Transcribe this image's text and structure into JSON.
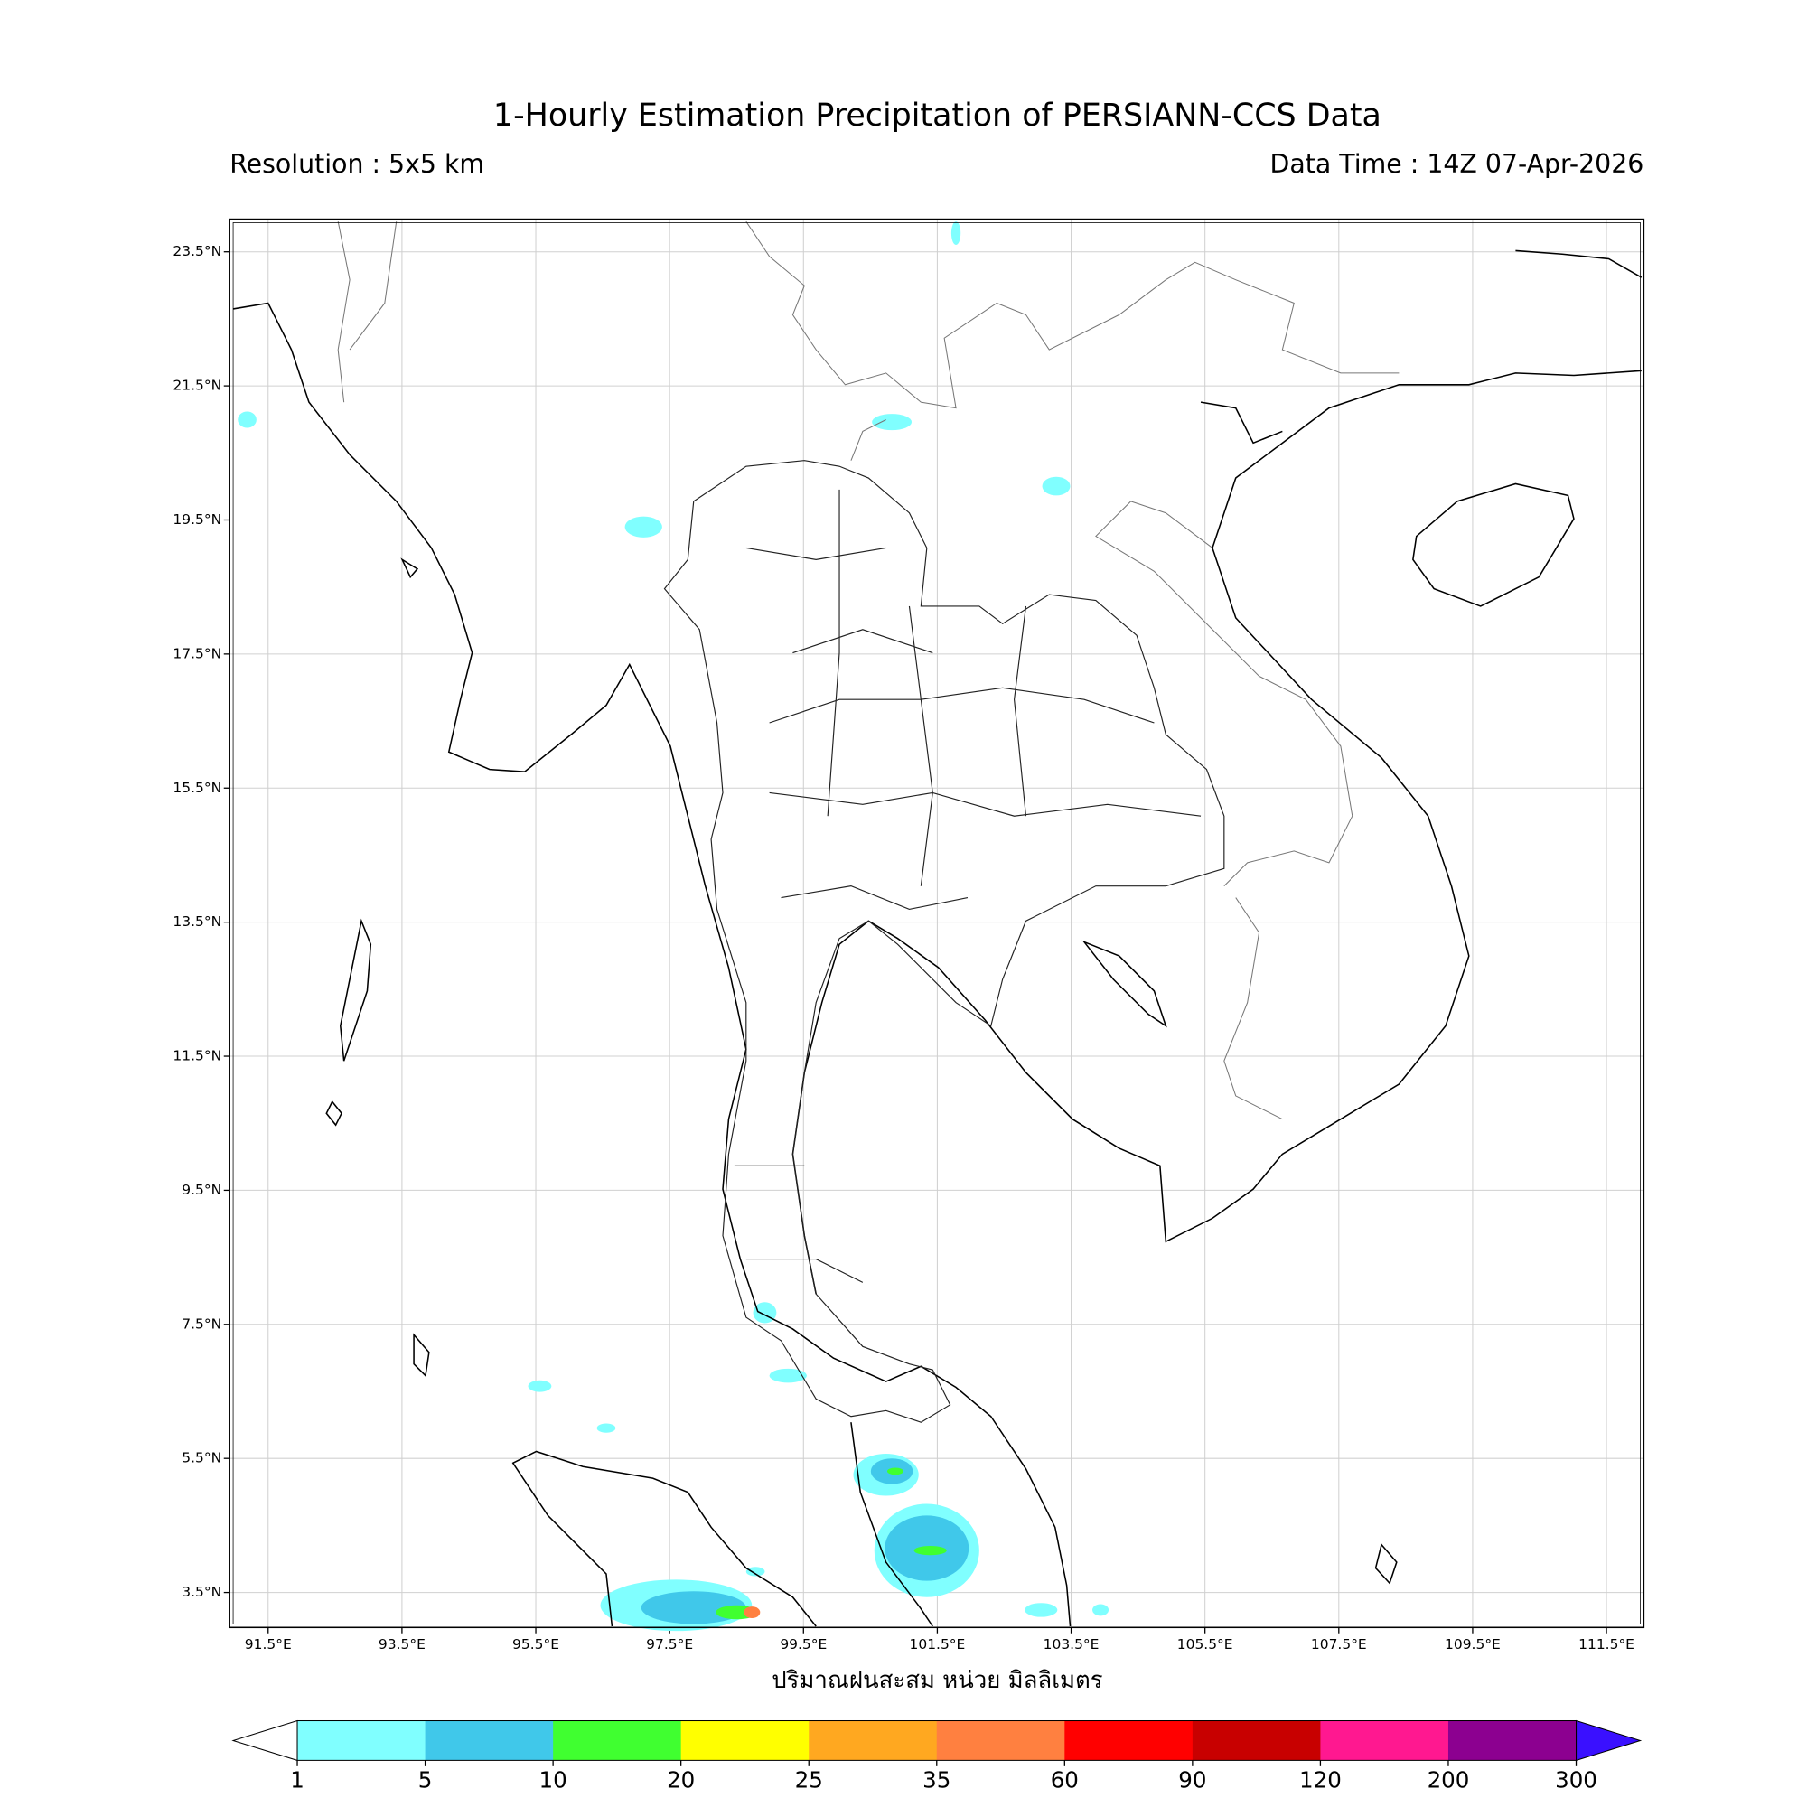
{
  "header": {
    "title": "1-Hourly Estimation Precipitation of PERSIANN-CCS Data",
    "resolution": "Resolution : 5x5 km",
    "data_time": "Data Time : 14Z 07-Apr-2026"
  },
  "map": {
    "lon_labels": [
      "91.5°E",
      "93.5°E",
      "95.5°E",
      "97.5°E",
      "99.5°E",
      "101.5°E",
      "103.5°E",
      "105.5°E",
      "107.5°E",
      "109.5°E",
      "111.5°E"
    ],
    "lat_labels": [
      "23.5°N",
      "21.5°N",
      "19.5°N",
      "17.5°N",
      "15.5°N",
      "13.5°N",
      "11.5°N",
      "9.5°N",
      "7.5°N",
      "5.5°N",
      "3.5°N"
    ],
    "xlabel": "ปริมาณฝนสะสม หน่วย มิลลิเมตร"
  },
  "colorbar": {
    "bounds": [
      1,
      5,
      10,
      20,
      25,
      35,
      60,
      90,
      120,
      200,
      300
    ],
    "colors": [
      "#80ffff",
      "#40c8ea",
      "#40ff30",
      "#ffff00",
      "#ffa820",
      "#ff8040",
      "#ff0000",
      "#c80000",
      "#ff1890",
      "#8c0090"
    ],
    "under_color": "#ffffff",
    "over_color": "#3a10ff"
  }
}
